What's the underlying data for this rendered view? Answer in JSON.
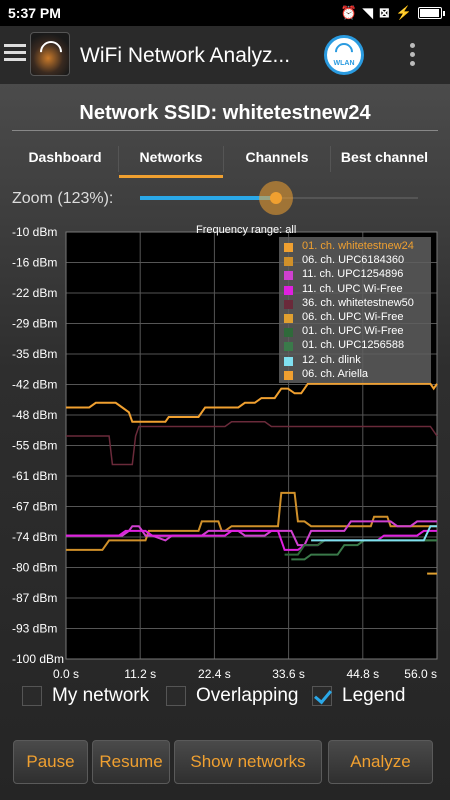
{
  "status_bar": {
    "time": "5:37 PM",
    "icons": [
      "alarm-icon",
      "wifi-icon",
      "no-sim-icon",
      "battery-icon"
    ]
  },
  "app_bar": {
    "title": "WiFi Network Analyz...",
    "wlan_label": "WLAN"
  },
  "network": {
    "ssid_label": "Network SSID: whitetestnew24"
  },
  "tabs": [
    {
      "label": "Dashboard",
      "active": false
    },
    {
      "label": "Networks",
      "active": true
    },
    {
      "label": "Channels",
      "active": false
    },
    {
      "label": "Best channel",
      "active": false
    }
  ],
  "zoom": {
    "label": "Zoom (123%):",
    "value_percent": 123,
    "slider_fraction": 0.49
  },
  "frequency_range": "Frequency range: all",
  "colors": {
    "accent": "#f0a030",
    "slider": "#2aa8e8",
    "background": "#2e2e2e"
  },
  "chart_data": {
    "type": "line",
    "ylabel_ticks": [
      "-10 dBm",
      "-16 dBm",
      "-22 dBm",
      "-29 dBm",
      "-35 dBm",
      "-42 dBm",
      "-48 dBm",
      "-55 dBm",
      "-61 dBm",
      "-67 dBm",
      "-74 dBm",
      "-80 dBm",
      "-87 dBm",
      "-93 dBm",
      "-100 dBm"
    ],
    "xlabel_ticks": [
      "0.0 s",
      "11.2 s",
      "22.4 s",
      "33.6 s",
      "44.8 s",
      "56.0 s"
    ],
    "ylim": [
      -100,
      -10
    ],
    "xlim": [
      0,
      56
    ],
    "grid": true,
    "legend_position": "top-right",
    "series": [
      {
        "name": "01. ch. whitetestnew24",
        "color": "#f0a030",
        "x": [
          0,
          3.5,
          4.5,
          7.5,
          8.5,
          9.5,
          10,
          15,
          15.5,
          20,
          21,
          26,
          27,
          28.5,
          29.5,
          31.5,
          32.5,
          33.5,
          34.5,
          35.5,
          36.5,
          55,
          55.5,
          56
        ],
        "y": [
          -47,
          -47,
          -46,
          -46,
          -47,
          -48,
          -50,
          -50,
          -49,
          -49,
          -47,
          -47,
          -46,
          -46,
          -45,
          -45,
          -43,
          -43,
          -44,
          -44,
          -42,
          -42,
          -43,
          -42
        ]
      },
      {
        "name": "06. ch. UPC6184360",
        "color": "#d0902a",
        "x": [
          0,
          5.5,
          6.5,
          12,
          12.5,
          20,
          20.5,
          23,
          23.5,
          24,
          25,
          32,
          32.5,
          34.5,
          35,
          36,
          37,
          46,
          46.5,
          48.5,
          49,
          56
        ],
        "y": [
          -77,
          -77,
          -75,
          -75,
          -73,
          -73,
          -71,
          -71,
          -73,
          -73,
          -72,
          -72,
          -65,
          -65,
          -71,
          -71,
          -72,
          -72,
          -70,
          -70,
          -72,
          -72
        ]
      },
      {
        "name": "11. ch. UPC1254896",
        "color": "#d040d0",
        "x": [
          0,
          8.5,
          9.5,
          10,
          11,
          12,
          13,
          15,
          16,
          20.5,
          21.5,
          26,
          27,
          30,
          31,
          34,
          35,
          36,
          37,
          42,
          43,
          49,
          50,
          52,
          53,
          56
        ],
        "y": [
          -74,
          -74,
          -73,
          -72,
          -72,
          -74,
          -74,
          -75,
          -74,
          -74,
          -73,
          -73,
          -74,
          -74,
          -73,
          -73,
          -76,
          -76,
          -73,
          -73,
          -71,
          -71,
          -72,
          -72,
          -71,
          -71
        ]
      },
      {
        "name": "11. ch. UPC Wi-Free",
        "color": "#e020e0",
        "x": [
          0,
          8,
          9,
          12,
          13,
          24,
          25,
          32,
          33,
          35,
          36,
          38,
          39,
          47,
          48,
          53,
          54,
          56
        ],
        "y": [
          -74,
          -74,
          -73,
          -73,
          -74,
          -74,
          -73,
          -73,
          -77,
          -77,
          -76,
          -76,
          -75,
          -75,
          -74,
          -74,
          -73,
          -73
        ]
      },
      {
        "name": "36. ch. whitetestnew50",
        "color": "#6a2a3a",
        "x": [
          0,
          5.5,
          6.5,
          7,
          10,
          10.5,
          11,
          15,
          16,
          24,
          25,
          30,
          31,
          55,
          56
        ],
        "y": [
          -53,
          -53,
          -53,
          -59,
          -59,
          -53,
          -51,
          -51,
          -51,
          -51,
          -50,
          -50,
          -51,
          -51,
          -53
        ]
      },
      {
        "name": "06. ch. UPC Wi-Free",
        "color": "#e0a030",
        "x": [
          54.5,
          56
        ],
        "y": [
          -82,
          -82
        ]
      },
      {
        "name": "01. ch. UPC Wi-Free",
        "color": "#2f6a3a",
        "x": [
          33,
          35,
          36,
          38,
          39,
          43,
          44,
          56
        ],
        "y": [
          -78,
          -78,
          -76,
          -76,
          -75,
          -75,
          -75,
          -75
        ]
      },
      {
        "name": "01. ch. UPC1256588",
        "color": "#3a7a4a",
        "x": [
          34,
          36,
          37,
          41,
          42,
          44,
          45,
          56
        ],
        "y": [
          -79,
          -79,
          -78,
          -78,
          -76,
          -76,
          -75,
          -75
        ]
      },
      {
        "name": "12. ch. dlink",
        "color": "#80e0f0",
        "x": [
          37,
          50,
          51,
          54,
          55,
          56
        ],
        "y": [
          -75,
          -75,
          -75,
          -75,
          -72,
          -72
        ]
      },
      {
        "name": "06. ch. Ariella",
        "color": "#f0a030",
        "x": [],
        "y": []
      }
    ]
  },
  "checkboxes": [
    {
      "label": "My network",
      "checked": false
    },
    {
      "label": "Overlapping",
      "checked": false
    },
    {
      "label": "Legend",
      "checked": true
    }
  ],
  "buttons": {
    "pause": "Pause",
    "resume": "Resume",
    "show_networks": "Show networks",
    "analyze": "Analyze"
  }
}
